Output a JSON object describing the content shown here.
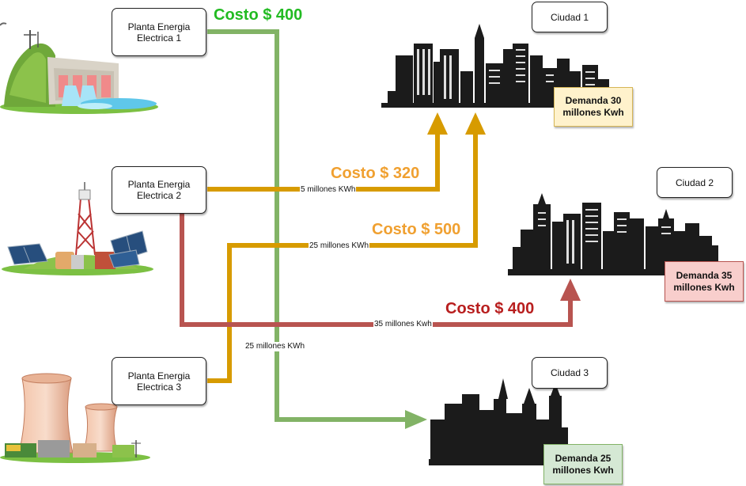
{
  "plants": [
    {
      "line1": "Planta Energia",
      "line2": "Electrica 1"
    },
    {
      "line1": "Planta Energia",
      "line2": "Electrica 2"
    },
    {
      "line1": "Planta Energia",
      "line2": "Electrica 3"
    }
  ],
  "cities": [
    {
      "name": "Ciudad 1",
      "demand_line1": "Demanda 30",
      "demand_line2": "millones Kwh",
      "demand_bg": "#fff2cc",
      "demand_border": "#d6b656"
    },
    {
      "name": "Ciudad 2",
      "demand_line1": "Demanda 35",
      "demand_line2": "millones Kwh",
      "demand_bg": "#f8cecc",
      "demand_border": "#b85450"
    },
    {
      "name": "Ciudad 3",
      "demand_line1": "Demanda 25",
      "demand_line2": "millones Kwh",
      "demand_bg": "#d5e8d4",
      "demand_border": "#82b366"
    }
  ],
  "routes": [
    {
      "from": "Planta Energia Electrica 1",
      "to": "Ciudad 3",
      "cost": "Costo $ 400",
      "flow": "25 millones KWh",
      "color": "#82b366"
    },
    {
      "from": "Planta Energia Electrica 2",
      "to": "Ciudad 1",
      "cost": "Costo $ 320",
      "flow": "5 millones KWh",
      "color": "#d79b00"
    },
    {
      "from": "Planta Energia Electrica 3",
      "to": "Ciudad 1",
      "cost": "Costo $ 500",
      "flow": "25 millones KWh",
      "color": "#d79b00"
    },
    {
      "from": "Planta Energia Electrica 2",
      "to": "Ciudad 2",
      "cost": "Costo $ 400",
      "flow": "35 millones Kwh",
      "color": "#b85450"
    }
  ],
  "cost_colors": [
    "#22bb22",
    "#f0a030",
    "#f0a030",
    "#b81e1e"
  ],
  "icons": [
    "hydro-plant-icon",
    "solar-plant-icon",
    "nuclear-plant-icon",
    "city-skyline-icon"
  ]
}
